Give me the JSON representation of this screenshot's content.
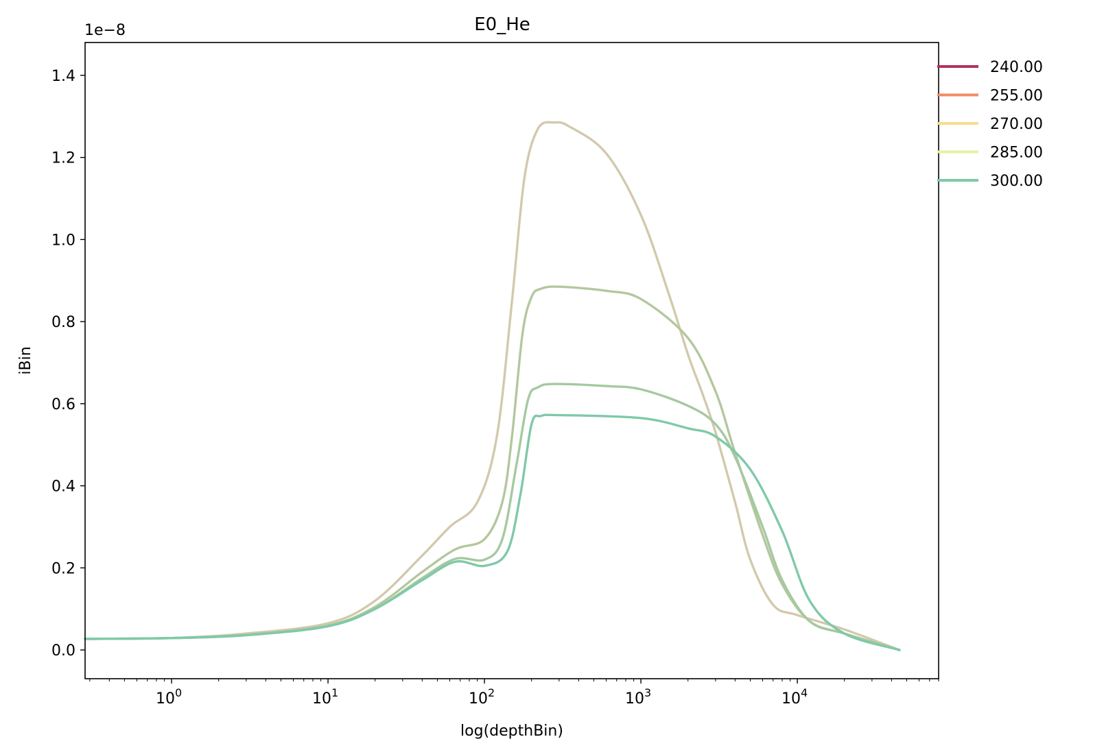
{
  "chart_data": {
    "type": "line",
    "title": "E0_He",
    "xlabel": "log(depthBin)",
    "ylabel": "iBin",
    "y_offset_text": "1e−8",
    "x_scale": "log",
    "xlim": [
      0.28,
      80000
    ],
    "ylim": [
      -0.07,
      1.48
    ],
    "grid": false,
    "legend_position": "outside-top-right",
    "y_ticks": [
      "0.0",
      "0.2",
      "0.4",
      "0.6",
      "0.8",
      "1.0",
      "1.2",
      "1.4"
    ],
    "x_ticks": [
      {
        "base": "10",
        "exp": "0"
      },
      {
        "base": "10",
        "exp": "1"
      },
      {
        "base": "10",
        "exp": "2"
      },
      {
        "base": "10",
        "exp": "3"
      },
      {
        "base": "10",
        "exp": "4"
      }
    ],
    "series": [
      {
        "name": "240.00",
        "color": "#b5305f",
        "x": [],
        "y": []
      },
      {
        "name": "255.00",
        "color": "#f08a65",
        "x": [],
        "y": []
      },
      {
        "name": "270.00",
        "color": "#f6dd8e",
        "x": [],
        "y": []
      },
      {
        "name": "285.00",
        "color": "#e6f2a0",
        "x": [],
        "y": []
      },
      {
        "name": "300.00",
        "color": "#7fc9a8",
        "x": [
          0.28,
          1,
          3,
          10,
          20,
          40,
          65,
          100,
          140,
          170,
          200,
          230,
          300,
          1000,
          2000,
          3000,
          5000,
          8000,
          12000,
          20000,
          45000
        ],
        "y": [
          0.027,
          0.029,
          0.036,
          0.058,
          0.1,
          0.17,
          0.215,
          0.205,
          0.24,
          0.38,
          0.55,
          0.57,
          0.572,
          0.565,
          0.54,
          0.52,
          0.44,
          0.29,
          0.12,
          0.04,
          0.0
        ]
      }
    ],
    "curves": [
      {
        "color": "#d2c9ad",
        "x": [
          0.28,
          1,
          3,
          10,
          20,
          40,
          60,
          90,
          120,
          150,
          180,
          220,
          280,
          350,
          600,
          1000,
          1500,
          2000,
          2500,
          3000,
          4000,
          5000,
          7000,
          10000,
          20000,
          45000
        ],
        "y": [
          0.027,
          0.029,
          0.04,
          0.065,
          0.12,
          0.23,
          0.3,
          0.36,
          0.52,
          0.85,
          1.15,
          1.27,
          1.285,
          1.275,
          1.21,
          1.06,
          0.87,
          0.72,
          0.62,
          0.53,
          0.36,
          0.22,
          0.11,
          0.085,
          0.05,
          0.0
        ]
      },
      {
        "color": "#b4c79e",
        "x": [
          0.28,
          1,
          3,
          10,
          20,
          40,
          65,
          100,
          130,
          150,
          175,
          200,
          230,
          300,
          600,
          1000,
          2000,
          3000,
          4000,
          6000,
          8000,
          12000,
          20000,
          45000
        ],
        "y": [
          0.027,
          0.029,
          0.037,
          0.06,
          0.105,
          0.19,
          0.245,
          0.27,
          0.36,
          0.52,
          0.77,
          0.86,
          0.88,
          0.885,
          0.875,
          0.855,
          0.76,
          0.63,
          0.48,
          0.28,
          0.16,
          0.07,
          0.04,
          0.0
        ]
      },
      {
        "color": "#a5c9a0",
        "x": [
          0.28,
          1,
          3,
          10,
          20,
          40,
          65,
          100,
          130,
          160,
          190,
          220,
          280,
          600,
          1000,
          2000,
          3000,
          4000,
          6000,
          8000,
          12000,
          20000,
          45000
        ],
        "y": [
          0.027,
          0.029,
          0.036,
          0.058,
          0.1,
          0.175,
          0.222,
          0.22,
          0.27,
          0.45,
          0.61,
          0.64,
          0.648,
          0.643,
          0.635,
          0.595,
          0.55,
          0.47,
          0.3,
          0.17,
          0.07,
          0.04,
          0.0
        ]
      }
    ]
  }
}
